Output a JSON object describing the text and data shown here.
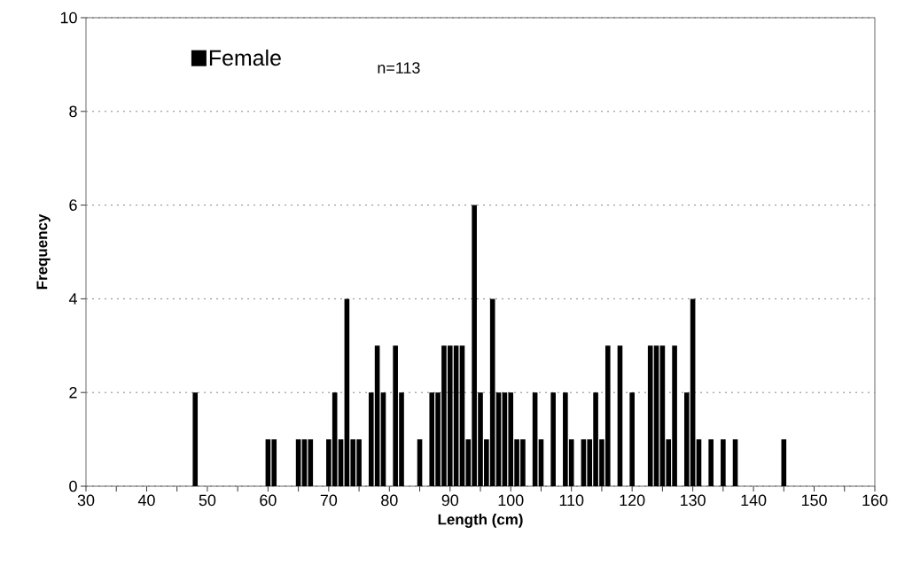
{
  "chart_data": {
    "type": "bar",
    "xlabel": "Length (cm)",
    "ylabel": "Frequency",
    "annotations": [
      "n=113"
    ],
    "series": [
      {
        "name": "Female",
        "color": "#000000",
        "x": [
          48,
          60,
          61,
          65,
          66,
          67,
          70,
          71,
          72,
          73,
          74,
          75,
          77,
          78,
          79,
          81,
          82,
          85,
          87,
          88,
          89,
          90,
          91,
          92,
          93,
          94,
          95,
          96,
          97,
          98,
          99,
          100,
          101,
          102,
          104,
          105,
          107,
          109,
          110,
          112,
          113,
          114,
          115,
          116,
          118,
          120,
          123,
          124,
          125,
          126,
          127,
          129,
          130,
          131,
          133,
          135,
          137,
          145
        ],
        "values": [
          2,
          1,
          1,
          1,
          1,
          1,
          1,
          2,
          1,
          4,
          1,
          1,
          2,
          3,
          2,
          3,
          2,
          1,
          2,
          2,
          3,
          3,
          3,
          3,
          1,
          6,
          2,
          1,
          4,
          2,
          2,
          2,
          1,
          1,
          2,
          1,
          2,
          2,
          1,
          1,
          1,
          2,
          1,
          3,
          3,
          2,
          3,
          3,
          3,
          1,
          3,
          2,
          4,
          1,
          1,
          1,
          1,
          1
        ]
      }
    ],
    "xlim": [
      30,
      160
    ],
    "ylim": [
      0,
      10
    ],
    "xticks": [
      30,
      {
        "value": 35,
        "label": null
      },
      40,
      {
        "value": 45,
        "label": null
      },
      50,
      {
        "value": 55,
        "label": null
      },
      60,
      {
        "value": 65,
        "label": null
      },
      70,
      {
        "value": 75,
        "label": null
      },
      80,
      {
        "value": 85,
        "label": null
      },
      90,
      {
        "value": 95,
        "label": null
      },
      100,
      {
        "value": 105,
        "label": null
      },
      110,
      {
        "value": 115,
        "label": null
      },
      120,
      {
        "value": 125,
        "label": null
      },
      130,
      {
        "value": 135,
        "label": null
      },
      140,
      {
        "value": 145,
        "label": null
      },
      150,
      {
        "value": 155,
        "label": null
      },
      160
    ],
    "yticks": [
      0,
      2,
      4,
      6,
      8,
      10
    ],
    "grid": "y",
    "legend": "top left"
  }
}
